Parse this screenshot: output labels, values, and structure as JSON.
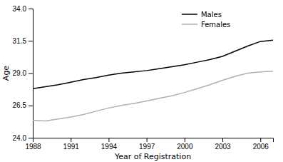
{
  "chart_data": {
    "type": "line",
    "x": [
      1988,
      1989,
      1990,
      1991,
      1992,
      1993,
      1994,
      1995,
      1996,
      1997,
      1998,
      1999,
      2000,
      2001,
      2002,
      2003,
      2004,
      2005,
      2006,
      2007
    ],
    "series": [
      {
        "name": "Males",
        "color": "#000000",
        "values": [
          27.8,
          27.95,
          28.1,
          28.3,
          28.5,
          28.65,
          28.85,
          29.0,
          29.1,
          29.2,
          29.35,
          29.5,
          29.65,
          29.85,
          30.05,
          30.3,
          30.7,
          31.1,
          31.45,
          31.55
        ]
      },
      {
        "name": "Females",
        "color": "#b0b0b0",
        "values": [
          25.35,
          25.3,
          25.45,
          25.6,
          25.8,
          26.05,
          26.3,
          26.5,
          26.65,
          26.85,
          27.05,
          27.25,
          27.5,
          27.8,
          28.1,
          28.45,
          28.75,
          29.0,
          29.1,
          29.15
        ]
      }
    ],
    "x_label": "Year of Registration",
    "y_label": "Age",
    "xlim": [
      1988,
      2007
    ],
    "ylim": [
      24.0,
      34.0
    ],
    "xticks": [
      1988,
      1991,
      1994,
      1997,
      2000,
      2003,
      2006
    ],
    "yticks": [
      {
        "value": 24.0,
        "label": "24.0"
      },
      26.5,
      {
        "value": 29.0,
        "label": "29.0"
      },
      31.5,
      {
        "value": 34.0,
        "label": "34.0"
      }
    ],
    "grid": false,
    "legend": "upper right"
  }
}
